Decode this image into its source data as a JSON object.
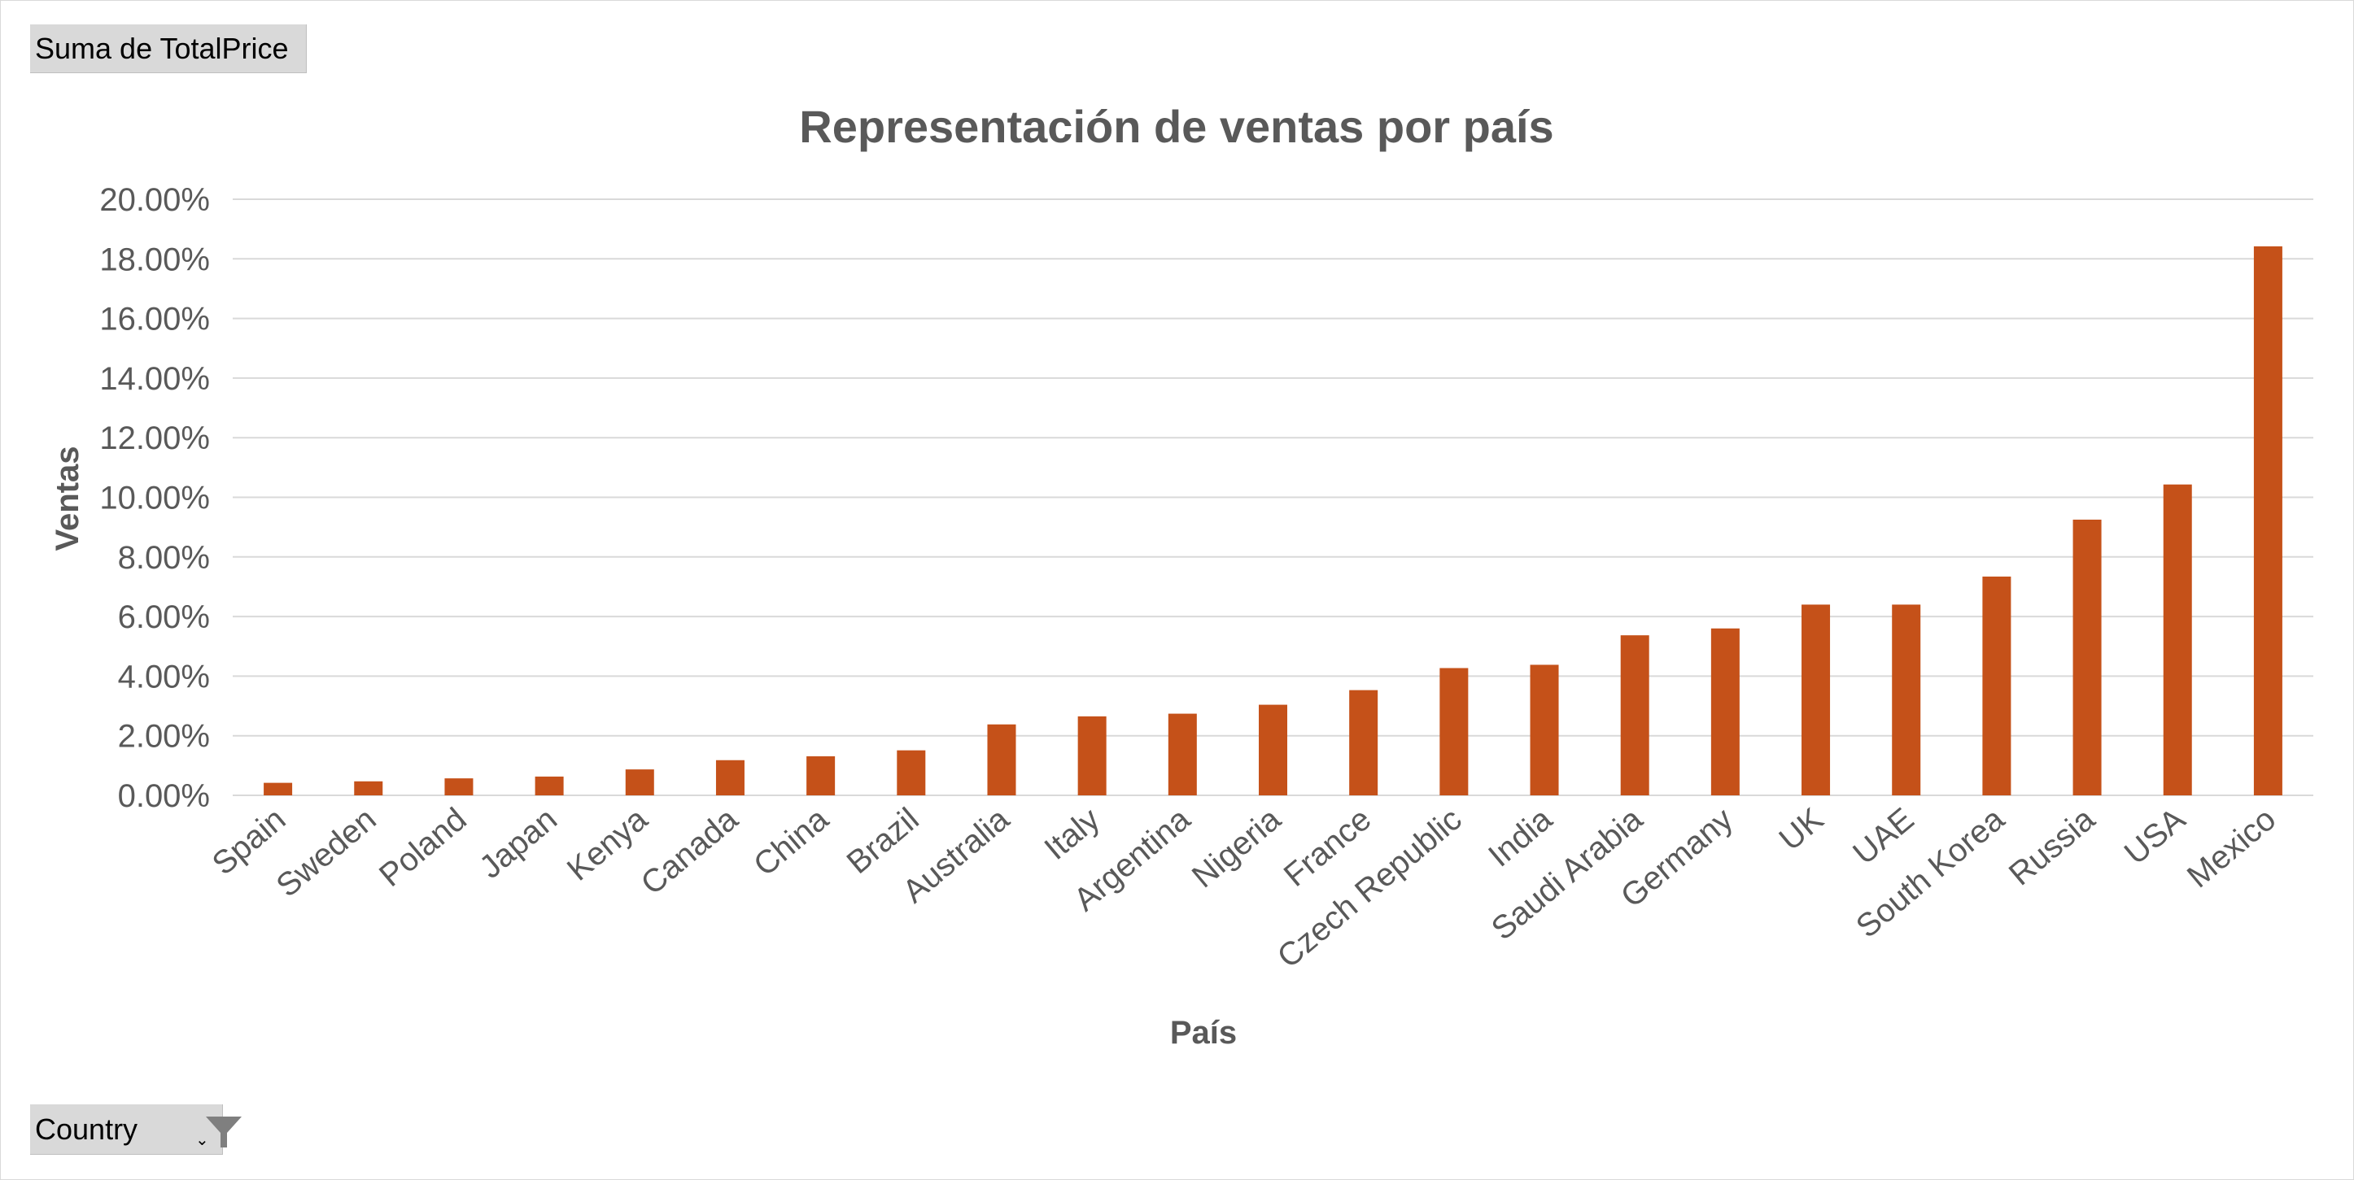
{
  "pivot": {
    "value_field": "Suma de TotalPrice",
    "axis_field": "Country",
    "filter_icon": "funnel-filter-icon",
    "dropdown_icon": "dropdown-arrow-icon"
  },
  "chart_data": {
    "type": "bar",
    "title": "Representación de ventas por país",
    "xlabel": "País",
    "ylabel": "Ventas",
    "categories": [
      "Spain",
      "Sweden",
      "Poland",
      "Japan",
      "Kenya",
      "Canada",
      "China",
      "Brazil",
      "Australia",
      "Italy",
      "Argentina",
      "Nigeria",
      "France",
      "Czech Republic",
      "India",
      "Saudi Arabia",
      "Germany",
      "UK",
      "UAE",
      "South Korea",
      "Russia",
      "USA",
      "Mexico"
    ],
    "values": [
      0.42,
      0.47,
      0.57,
      0.63,
      0.87,
      1.18,
      1.31,
      1.51,
      2.38,
      2.65,
      2.74,
      3.04,
      3.53,
      4.27,
      4.38,
      5.37,
      5.6,
      6.4,
      6.4,
      7.34,
      9.25,
      10.43,
      18.42
    ],
    "ylim": [
      0,
      20
    ],
    "yticks": [
      "0.00%",
      "2.00%",
      "4.00%",
      "6.00%",
      "8.00%",
      "10.00%",
      "12.00%",
      "14.00%",
      "16.00%",
      "18.00%",
      "20.00%"
    ],
    "grid": true,
    "legend": "none",
    "bar_color": "#c55119",
    "gridline_color": "#d9d9d9",
    "text_color": "#595959"
  }
}
